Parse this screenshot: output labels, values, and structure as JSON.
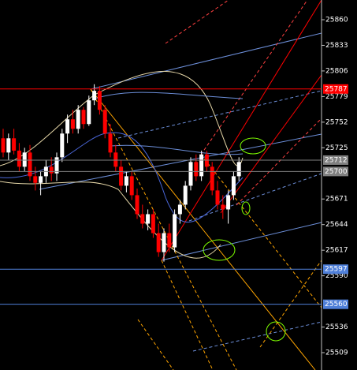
{
  "chart_data": {
    "type": "candlestick",
    "ylim": [
      25490.7,
      25880.8
    ],
    "yticks": [
      25860,
      25833,
      25806,
      25779,
      25752,
      25725,
      25671,
      25644,
      25617,
      25590,
      25536,
      25509
    ],
    "bull_color": "#ffffff",
    "bear_color": "#ff0000",
    "open": [
      25735,
      25720,
      25735,
      25722,
      25705,
      25720,
      25695,
      25688,
      25695,
      25705,
      25698,
      25715,
      25740,
      25755,
      25745,
      25765,
      25750,
      25775,
      25785,
      25765,
      25740,
      25720,
      25705,
      25685,
      25695,
      25675,
      25655,
      25645,
      25655,
      25635,
      25615,
      25635,
      25620,
      25655,
      25665,
      25685,
      25710,
      25695,
      25718,
      25705,
      25680,
      25665,
      25660,
      25675,
      25695
    ],
    "high": [
      25745,
      25740,
      25745,
      25730,
      25725,
      25728,
      25705,
      25700,
      25712,
      25715,
      25720,
      25745,
      25760,
      25765,
      25770,
      25768,
      25780,
      25792,
      25790,
      25770,
      25750,
      25728,
      25712,
      25700,
      25700,
      25682,
      25665,
      25660,
      25660,
      25645,
      25640,
      25645,
      25660,
      25670,
      25690,
      25715,
      25718,
      25722,
      25722,
      25710,
      25690,
      25675,
      25680,
      25700,
      25715
    ],
    "low": [
      25715,
      25712,
      25718,
      25700,
      25700,
      25690,
      25680,
      25675,
      25688,
      25690,
      25690,
      25710,
      25730,
      25740,
      25740,
      25745,
      25748,
      25770,
      25760,
      25735,
      25715,
      25700,
      25680,
      25678,
      25670,
      25650,
      25640,
      25638,
      25630,
      25610,
      25605,
      25615,
      25615,
      25645,
      25660,
      25680,
      25690,
      25690,
      25700,
      25675,
      25660,
      25650,
      25645,
      25670,
      25690
    ],
    "close": [
      25720,
      25735,
      25722,
      25705,
      25720,
      25695,
      25688,
      25695,
      25705,
      25698,
      25715,
      25740,
      25755,
      25745,
      25765,
      25750,
      25775,
      25785,
      25765,
      25740,
      25720,
      25705,
      25685,
      25695,
      25675,
      25655,
      25645,
      25655,
      25635,
      25615,
      25635,
      25620,
      25655,
      25665,
      25685,
      25710,
      25695,
      25718,
      25705,
      25680,
      25665,
      25660,
      25675,
      25695,
      25710
    ],
    "levels": [
      {
        "value": 25787,
        "color": "#ff0000"
      },
      {
        "value": 25712,
        "color": "#808080"
      },
      {
        "value": 25700,
        "color": "#808080"
      },
      {
        "value": 25597,
        "color": "#4f7fd8"
      },
      {
        "value": 25560,
        "color": "#4f7fd8"
      }
    ]
  }
}
